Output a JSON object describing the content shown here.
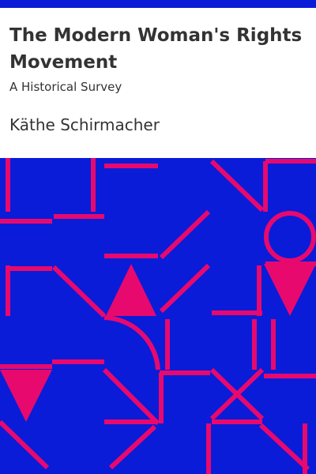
{
  "book": {
    "title": "The Modern Woman's Rights Movement",
    "subtitle": "A Historical Survey",
    "author": "Käthe Schirmacher"
  },
  "colors": {
    "top_bar": "#0a1cd8",
    "pattern_background": "#0a1cd8",
    "pattern_lines": "#e8096e",
    "text": "#333333",
    "page": "#ffffff"
  }
}
